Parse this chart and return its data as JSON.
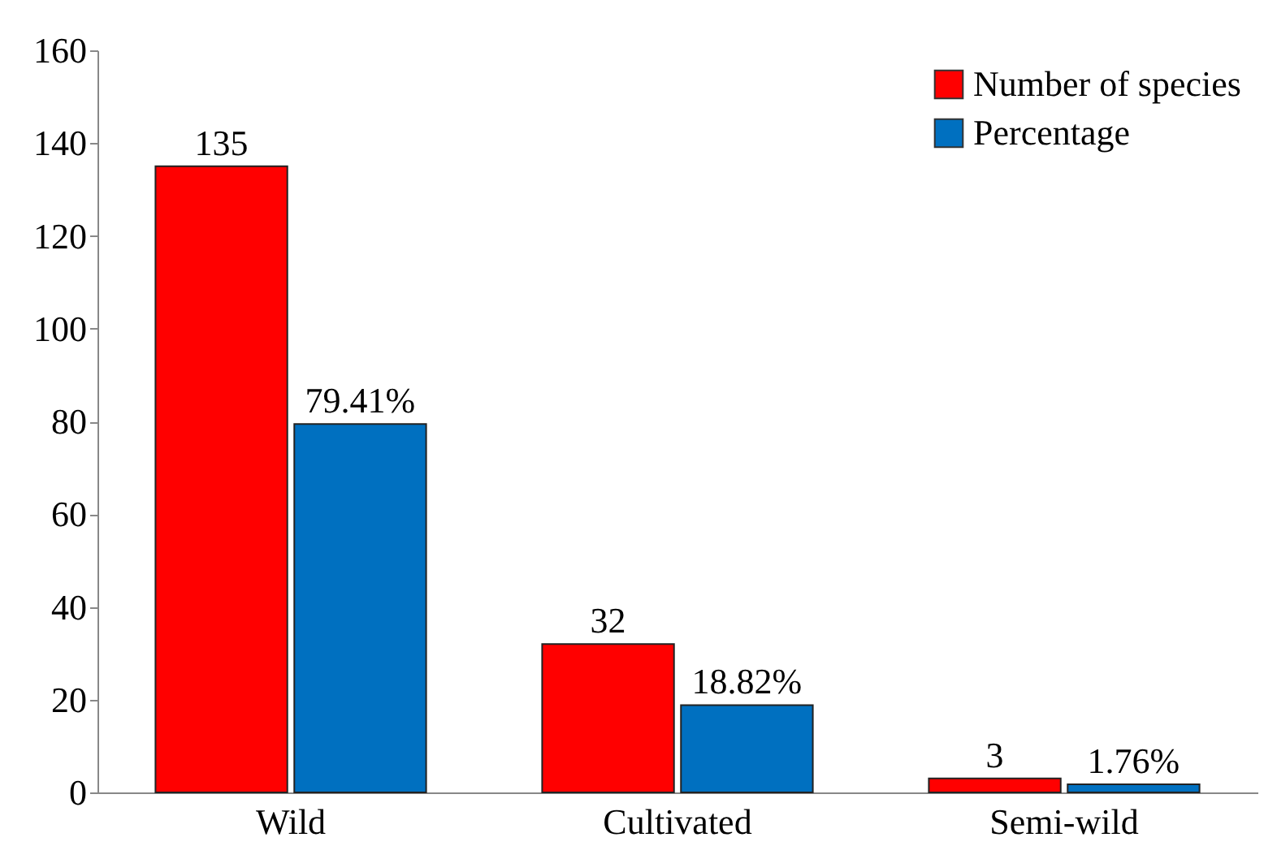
{
  "chart_data": {
    "type": "bar",
    "categories": [
      "Wild",
      "Cultivated",
      "Semi-wild"
    ],
    "series": [
      {
        "name": "Number of species",
        "color": "#ff0000",
        "values": [
          135,
          32,
          3
        ],
        "value_labels": [
          "135",
          "32",
          "3"
        ]
      },
      {
        "name": "Percentage",
        "color": "#0070c0",
        "values": [
          79.41,
          18.82,
          1.76
        ],
        "value_labels": [
          "79.41%",
          "18.82%",
          "1.76%"
        ]
      }
    ],
    "ylim": [
      0,
      160
    ],
    "yticks": [
      0,
      20,
      40,
      60,
      80,
      100,
      120,
      140,
      160
    ],
    "grid": false,
    "legend": "top right"
  }
}
